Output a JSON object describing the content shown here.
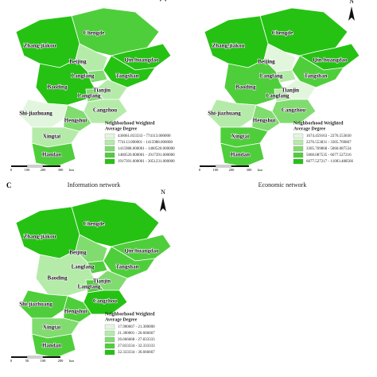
{
  "north": "N",
  "panels": [
    {
      "caption": "Information network",
      "legend_title": [
        "Neighborhood Weighted",
        "Average Degree"
      ],
      "legend": [
        {
          "label": "436061.833333 - 774113.000000",
          "color": "#e2f6dd"
        },
        {
          "label": "774113.000001 - 1415988.000000",
          "color": "#b5eba9"
        },
        {
          "label": "1415988.000001 - 1460520.000000",
          "color": "#80dc6f"
        },
        {
          "label": "1460520.000001 - 1917391.000000",
          "color": "#4fce3b"
        },
        {
          "label": "1917391.000001 - 3051231.000000",
          "color": "#25c213"
        }
      ],
      "scale": [
        "0",
        "100",
        "200",
        "300",
        "km"
      ],
      "cities": [
        {
          "name": "Chengde",
          "color": "#4fce3b"
        },
        {
          "name": "Zhang-jiakou",
          "color": "#25c213"
        },
        {
          "name": "Beijing",
          "color": "#b5eba9"
        },
        {
          "name": "Qin-huangdao",
          "color": "#25c213"
        },
        {
          "name": "Langfang",
          "color": "#80dc6f"
        },
        {
          "name": "Tangshan",
          "color": "#25c213"
        },
        {
          "name": "Tianjin",
          "color": "#b5eba9"
        },
        {
          "name": "Baoding",
          "color": "#25c213"
        },
        {
          "name": "Langfang",
          "color": "#80dc6f"
        },
        {
          "name": "Cangzhou",
          "color": "#b5eba9"
        },
        {
          "name": "Shi-jiazhuang",
          "color": "#e2f6dd"
        },
        {
          "name": "Hengshui",
          "color": "#80dc6f"
        },
        {
          "name": "Xingtai",
          "color": "#b5eba9"
        },
        {
          "name": "Handan",
          "color": "#4fce3b"
        }
      ]
    },
    {
      "caption": "Economic network",
      "legend_title": [
        "Neighborhood Weighted",
        "Average Degree"
      ],
      "legend": [
        {
          "label": "1674.459163 - 2276.553830",
          "color": "#e2f6dd"
        },
        {
          "label": "2276.553831 - 3305.769867",
          "color": "#b5eba9"
        },
        {
          "label": "3305.769868 - 5060.087534",
          "color": "#80dc6f"
        },
        {
          "label": "5060.087535 - 6677.527216",
          "color": "#4fce3b"
        },
        {
          "label": "6677.527217 - 11003.488566",
          "color": "#25c213"
        }
      ],
      "scale": [
        "0",
        "100",
        "200",
        "300",
        "km"
      ],
      "cities": [
        {
          "name": "Chengde",
          "color": "#25c213"
        },
        {
          "name": "Zhang-jiakou",
          "color": "#25c213"
        },
        {
          "name": "Beijing",
          "color": "#e2f6dd"
        },
        {
          "name": "Qin-huangdao",
          "color": "#25c213"
        },
        {
          "name": "Langfang",
          "color": "#b5eba9"
        },
        {
          "name": "Tangshan",
          "color": "#4fce3b"
        },
        {
          "name": "Tianjin",
          "color": "#e2f6dd"
        },
        {
          "name": "Baoding",
          "color": "#4fce3b"
        },
        {
          "name": "Langfang",
          "color": "#b5eba9"
        },
        {
          "name": "Cangzhou",
          "color": "#80dc6f"
        },
        {
          "name": "Shi-jiazhuang",
          "color": "#b5eba9"
        },
        {
          "name": "Hengshui",
          "color": "#80dc6f"
        },
        {
          "name": "Xingtai",
          "color": "#4fce3b"
        },
        {
          "name": "Handan",
          "color": "#4fce3b"
        }
      ]
    },
    {
      "label": "C",
      "legend_title": [
        "Neighborhood Weighted",
        "Average Degree"
      ],
      "legend": [
        {
          "label": "17.900667 - 21.300000",
          "color": "#e2f6dd"
        },
        {
          "label": "21.300001 - 26.666667",
          "color": "#b5eba9"
        },
        {
          "label": "26.666668 - 27.833333",
          "color": "#80dc6f"
        },
        {
          "label": "27.833334 - 32.333333",
          "color": "#4fce3b"
        },
        {
          "label": "32.333334 - 36.666667",
          "color": "#25c213"
        }
      ],
      "scale": [
        "0",
        "50",
        "100",
        "200",
        "km"
      ],
      "cities": [
        {
          "name": "Chengde",
          "color": "#25c213"
        },
        {
          "name": "Zhang-jiakou",
          "color": "#25c213"
        },
        {
          "name": "Beijing",
          "color": "#80dc6f"
        },
        {
          "name": "Qin-huangdao",
          "color": "#4fce3b"
        },
        {
          "name": "Langfang",
          "color": "#4fce3b"
        },
        {
          "name": "Tangshan",
          "color": "#4fce3b"
        },
        {
          "name": "Tianjin",
          "color": "#80dc6f"
        },
        {
          "name": "Baoding",
          "color": "#b5eba9"
        },
        {
          "name": "Langfang",
          "color": "#4fce3b"
        },
        {
          "name": "Cangzhou",
          "color": "#25c213"
        },
        {
          "name": "Shi-jiazhuang",
          "color": "#4fce3b"
        },
        {
          "name": "Hengshui",
          "color": "#4fce3b"
        },
        {
          "name": "Xingtai",
          "color": "#80dc6f"
        },
        {
          "name": "Handan",
          "color": "#4fce3b"
        }
      ]
    }
  ]
}
